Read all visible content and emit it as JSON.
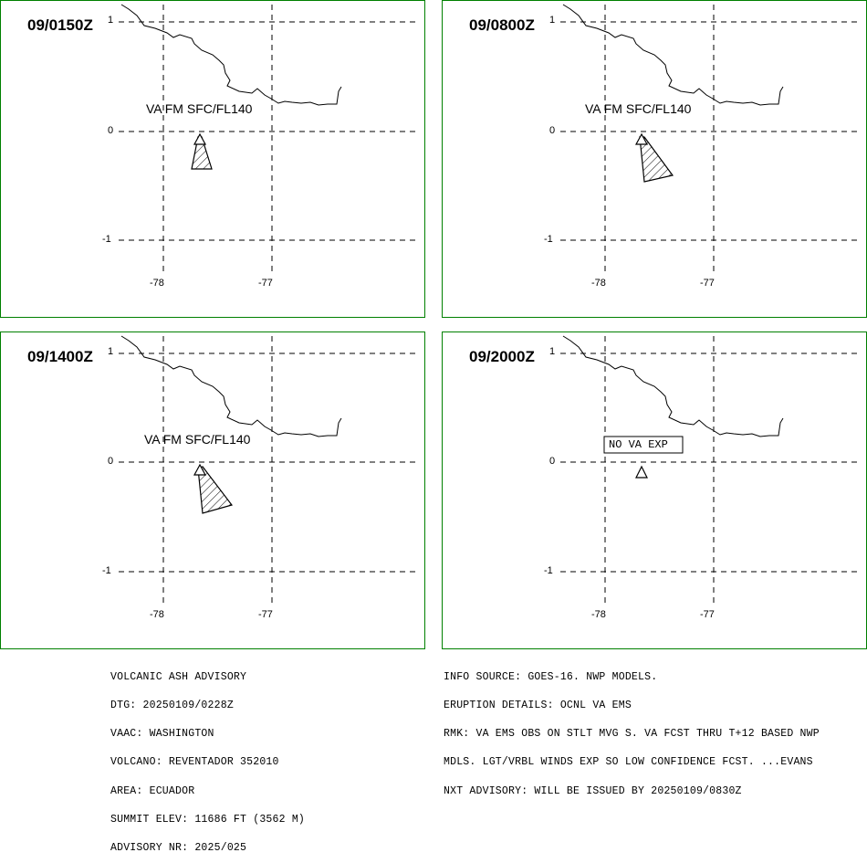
{
  "panels": [
    {
      "time": "09/0150Z",
      "label": "VA FM SFC/FL140",
      "status": ""
    },
    {
      "time": "09/0800Z",
      "label": "VA FM SFC/FL140",
      "status": ""
    },
    {
      "time": "09/1400Z",
      "label": "VA FM SFC/FL140",
      "status": ""
    },
    {
      "time": "09/2000Z",
      "label": "",
      "status": "NO VA EXP"
    }
  ],
  "axes": {
    "lat_ticks": [
      "1",
      "0",
      "-1"
    ],
    "lon_ticks": [
      "-78",
      "-77"
    ]
  },
  "colors": {
    "frame": "#008000",
    "ink": "#000000",
    "background": "#ffffff"
  },
  "icons": {
    "volcano": "triangle-volcano-icon",
    "ash_cloud": "hatched-polygon"
  },
  "advisory_left": [
    "VOLCANIC ASH ADVISORY",
    "DTG: 20250109/0228Z",
    "VAAC: WASHINGTON",
    "VOLCANO: REVENTADOR 352010",
    "AREA: ECUADOR",
    "SUMMIT ELEV: 11686 FT (3562 M)",
    "ADVISORY NR: 2025/025"
  ],
  "advisory_right": [
    "INFO SOURCE: GOES-16. NWP MODELS.",
    "ERUPTION DETAILS: OCNL VA EMS",
    "RMK: VA EMS OBS ON STLT MVG S. VA FCST THRU T+12 BASED NWP",
    "MDLS. LGT/VRBL WINDS EXP SO LOW CONFIDENCE FCST. ...EVANS",
    "NXT ADVISORY: WILL BE ISSUED BY 20250109/0830Z"
  ]
}
